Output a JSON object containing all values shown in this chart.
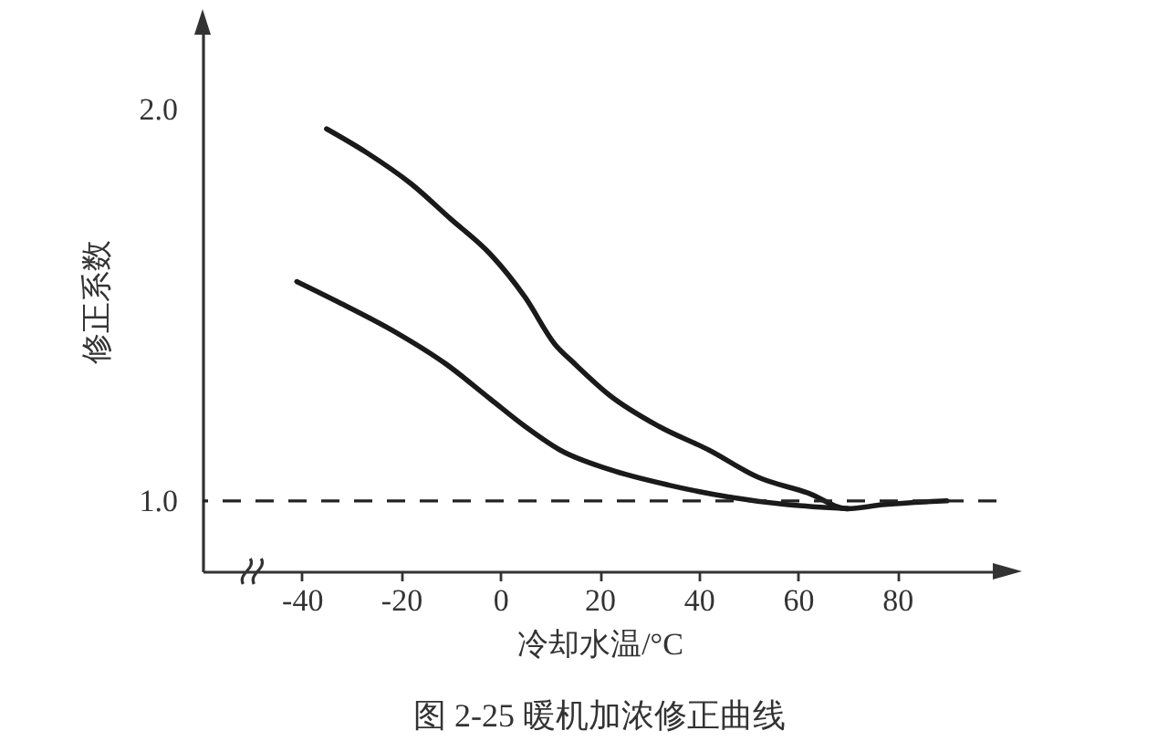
{
  "chart_data": {
    "type": "line",
    "xlabel": "冷却水温/°C",
    "ylabel": "修正系数",
    "annotations": [
      "图 2-25 暖机加浓修正曲线"
    ],
    "xlim": [
      -60,
      100
    ],
    "ylim": [
      0.82,
      2.2
    ],
    "xticks": [
      -40,
      -20,
      0,
      20,
      40,
      60,
      80
    ],
    "yticks": [
      {
        "value": 1,
        "label": "1.0"
      },
      {
        "value": 2,
        "label": "2.0"
      }
    ],
    "grid": false,
    "marker": "none",
    "line_style": "solid",
    "ref_lines": [
      {
        "axis": "y",
        "value": 1,
        "line_style": "dashed",
        "color": "#222222"
      }
    ],
    "series": [
      {
        "color": "#1a1a1a",
        "x": [
          -35,
          -27,
          -18,
          -10,
          -2,
          5,
          11,
          15,
          22,
          32,
          42,
          52,
          62,
          70,
          77,
          90
        ],
        "values": [
          1.95,
          1.89,
          1.81,
          1.72,
          1.63,
          1.52,
          1.4,
          1.35,
          1.27,
          1.19,
          1.13,
          1.06,
          1.02,
          0.98,
          0.99,
          1.0
        ]
      },
      {
        "color": "#1a1a1a",
        "x": [
          -41,
          -33,
          -21,
          -11,
          -2,
          5,
          12,
          22,
          34,
          46,
          58,
          70
        ],
        "values": [
          1.56,
          1.51,
          1.43,
          1.35,
          1.26,
          1.19,
          1.13,
          1.08,
          1.04,
          1.01,
          0.99,
          0.98
        ]
      }
    ]
  }
}
